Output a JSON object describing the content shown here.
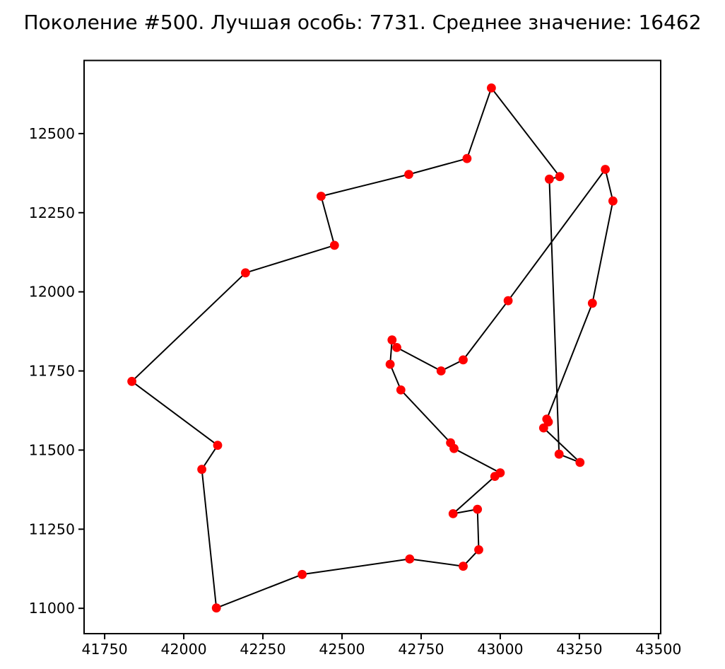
{
  "title": "Поколение #500. Лучшая особь: 7731. Среднее значение: 16462",
  "stats": {
    "generation": 500,
    "best_individual": 7731,
    "mean_value": 16462
  },
  "colors": {
    "marker": "#ff0000",
    "line": "#000000",
    "axis": "#000000",
    "text": "#000000",
    "background": "#ffffff"
  },
  "chart_data": {
    "type": "line",
    "title": "Поколение #500. Лучшая особь: 7731. Среднее значение: 16462",
    "xlabel": "",
    "ylabel": "",
    "grid": false,
    "legend": false,
    "xlim": [
      41685,
      43507
    ],
    "ylim": [
      10920,
      12731
    ],
    "x_ticks": [
      41750,
      42000,
      42250,
      42500,
      42750,
      43000,
      43250,
      43500
    ],
    "y_ticks": [
      11000,
      11250,
      11500,
      11750,
      12000,
      12250,
      12500
    ],
    "marker": "circle",
    "closed_tour": true,
    "points": [
      [
        42972,
        12644
      ],
      [
        42895,
        12421
      ],
      [
        42711,
        12371
      ],
      [
        42434,
        12302
      ],
      [
        42476,
        12147
      ],
      [
        42195,
        12060
      ],
      [
        41836,
        11717
      ],
      [
        42107,
        11515
      ],
      [
        42057,
        11439
      ],
      [
        42103,
        11001
      ],
      [
        42374,
        11107
      ],
      [
        42714,
        11156
      ],
      [
        42883,
        11133
      ],
      [
        42932,
        11185
      ],
      [
        42928,
        11313
      ],
      [
        42851,
        11299
      ],
      [
        42983,
        11417
      ],
      [
        43000,
        11428
      ],
      [
        42854,
        11505
      ],
      [
        42843,
        11523
      ],
      [
        42686,
        11690
      ],
      [
        42652,
        11771
      ],
      [
        42658,
        11848
      ],
      [
        42673,
        11824
      ],
      [
        42813,
        11750
      ],
      [
        42883,
        11785
      ],
      [
        43025,
        11972
      ],
      [
        43332,
        12387
      ],
      [
        43356,
        12287
      ],
      [
        43291,
        11964
      ],
      [
        43147,
        11598
      ],
      [
        43152,
        11589
      ],
      [
        43137,
        11570
      ],
      [
        43252,
        11461
      ],
      [
        43186,
        11487
      ],
      [
        43155,
        12356
      ],
      [
        43188,
        12364
      ]
    ]
  }
}
